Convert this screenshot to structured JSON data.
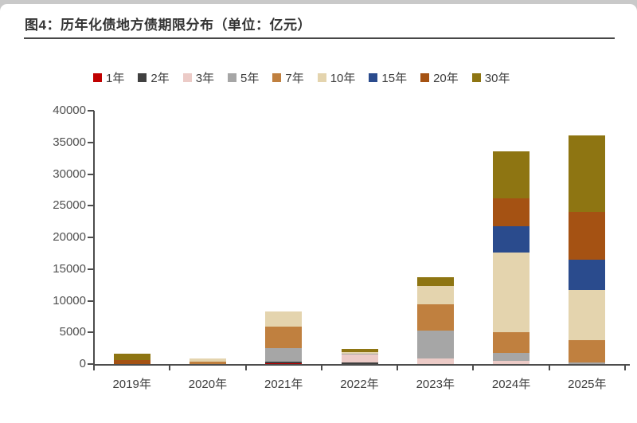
{
  "page": {
    "title": "图4：历年化债地方债期限分布（单位：亿元）"
  },
  "chart_data": {
    "type": "bar",
    "stacked": true,
    "title": "历年化债地方债期限分布",
    "unit": "亿元",
    "xlabel": "",
    "ylabel": "",
    "ylim": [
      0,
      40000
    ],
    "grid": false,
    "legend_position": "top",
    "yticks": [
      "0",
      "5000",
      "10000",
      "15000",
      "20000",
      "25000",
      "30000",
      "35000",
      "40000"
    ],
    "categories": [
      "2019年",
      "2020年",
      "2021年",
      "2022年",
      "2023年",
      "2024年",
      "2025年"
    ],
    "series": [
      {
        "name": "1年",
        "color": "#c00000",
        "values": [
          0,
          0,
          100,
          0,
          0,
          0,
          0
        ]
      },
      {
        "name": "2年",
        "color": "#404040",
        "values": [
          0,
          0,
          280,
          200,
          0,
          0,
          0
        ]
      },
      {
        "name": "3年",
        "color": "#eccbc7",
        "values": [
          0,
          0,
          0,
          1250,
          900,
          500,
          0
        ]
      },
      {
        "name": "5年",
        "color": "#a6a6a6",
        "values": [
          0,
          0,
          2200,
          250,
          4400,
          1250,
          250
        ]
      },
      {
        "name": "7年",
        "color": "#c0803f",
        "values": [
          0,
          400,
          3400,
          0,
          4150,
          3250,
          3500
        ]
      },
      {
        "name": "10年",
        "color": "#e4d4ae",
        "values": [
          0,
          500,
          2320,
          250,
          2900,
          12650,
          8000
        ]
      },
      {
        "name": "15年",
        "color": "#2a4b8d",
        "values": [
          0,
          0,
          0,
          0,
          0,
          4130,
          4760
        ]
      },
      {
        "name": "20年",
        "color": "#a55213",
        "values": [
          650,
          0,
          0,
          0,
          0,
          4380,
          7500
        ]
      },
      {
        "name": "30年",
        "color": "#8e7512",
        "values": [
          950,
          0,
          0,
          450,
          1400,
          7390,
          12150
        ]
      }
    ]
  }
}
